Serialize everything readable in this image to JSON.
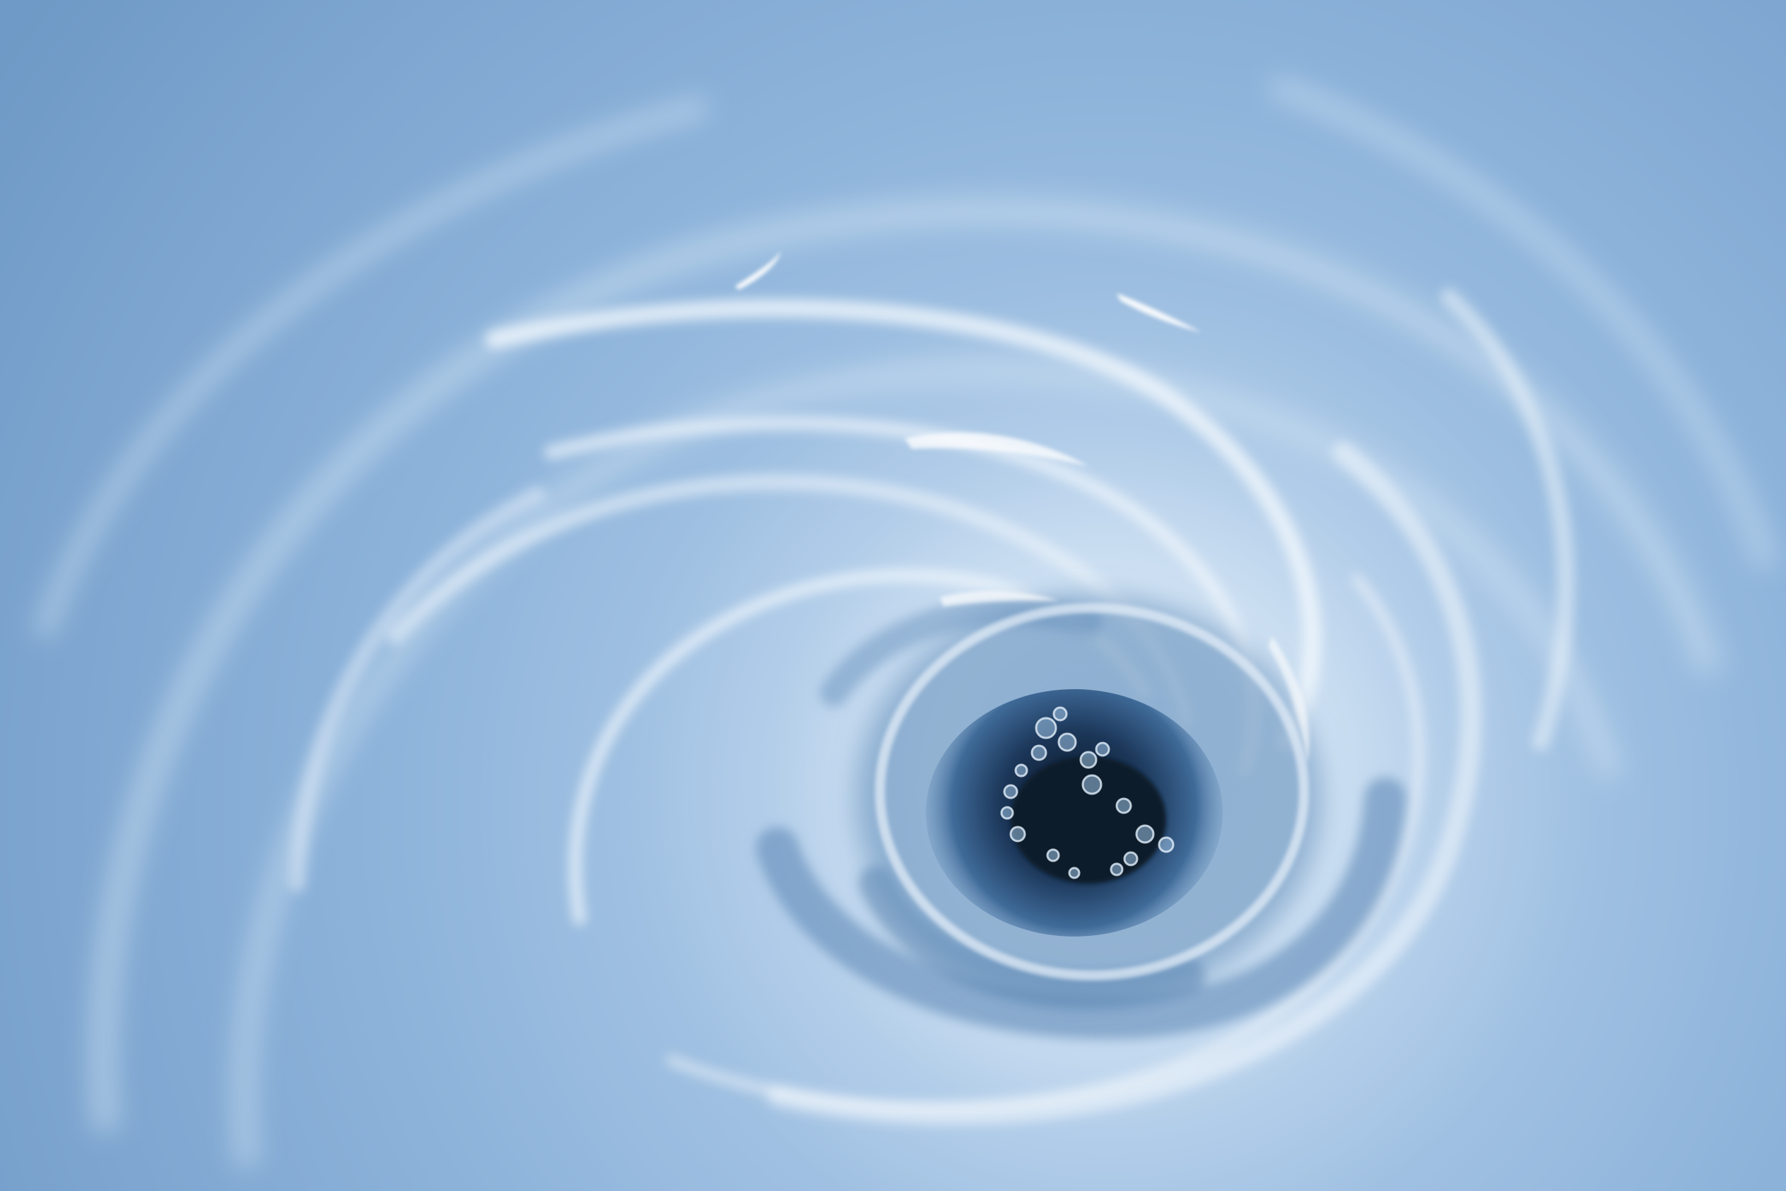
{
  "scene": {
    "subject": "water-vortex-draining",
    "colors": {
      "background": "#7fa6cc",
      "light": "#cfe2f3",
      "mid": "#6b97c4",
      "deep": "#1f3f66",
      "drain": "#0d1a2c",
      "highlight": "#ffffff"
    }
  }
}
